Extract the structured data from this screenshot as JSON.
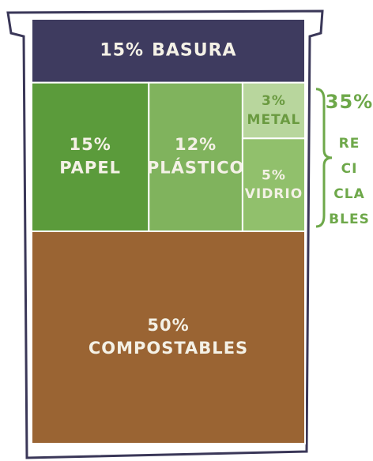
{
  "chart_data": {
    "type": "treemap",
    "categories": [
      "BASURA",
      "PAPEL",
      "PLÁSTICO",
      "METAL",
      "VIDRIO",
      "COMPOSTABLES"
    ],
    "values": [
      15,
      15,
      12,
      3,
      5,
      50
    ],
    "value_labels": [
      "15%",
      "15%",
      "12%",
      "3%",
      "5%",
      "50%"
    ],
    "colors": [
      "#3e3b5f",
      "#5b9b3b",
      "#80b35d",
      "#b8d69d",
      "#91c06c",
      "#9a6433"
    ],
    "group": {
      "value": 35,
      "value_label": "35%",
      "label_lines": [
        "RE",
        "CI",
        "CLA",
        "BLES"
      ],
      "color": "#6ea84a"
    }
  }
}
